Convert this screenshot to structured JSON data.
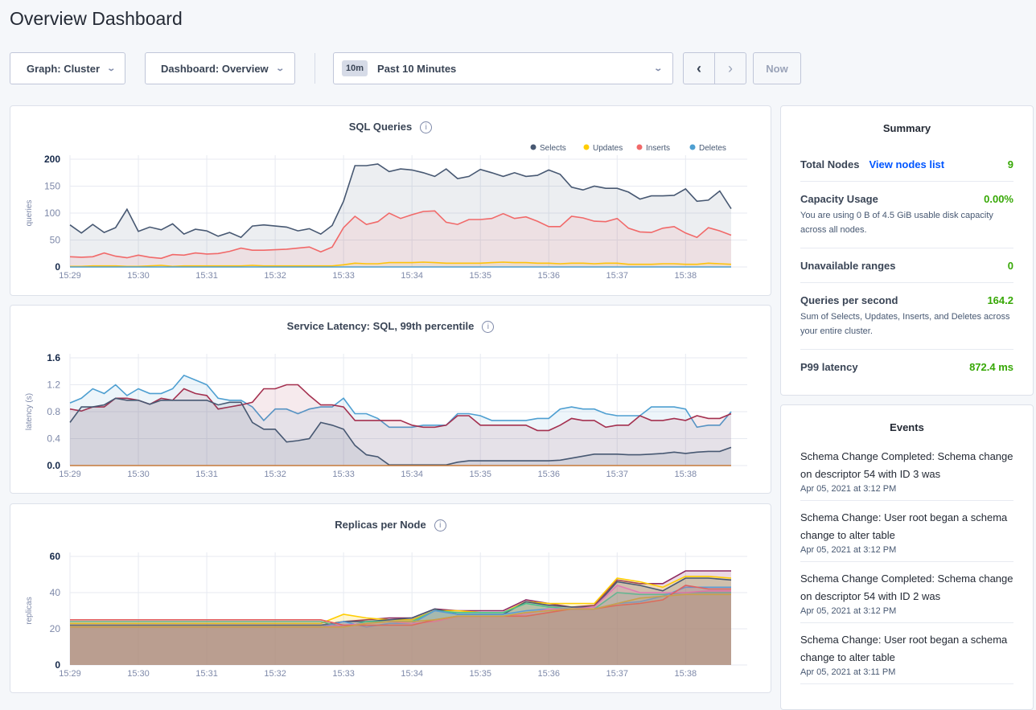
{
  "page_title": "Overview Dashboard",
  "controls": {
    "graph": "Graph: Cluster",
    "dashboard": "Dashboard: Overview",
    "time_badge": "10m",
    "time_range": "Past 10 Minutes",
    "prev": "‹",
    "next": "›",
    "now": "Now"
  },
  "summary": {
    "title": "Summary",
    "total_nodes": {
      "label": "Total Nodes",
      "link": "View nodes list",
      "value": "9"
    },
    "capacity": {
      "label": "Capacity Usage",
      "value": "0.00%",
      "desc": "You are using 0 B of 4.5 GiB usable disk capacity across all nodes."
    },
    "unavailable": {
      "label": "Unavailable ranges",
      "value": "0"
    },
    "qps": {
      "label": "Queries per second",
      "value": "164.2",
      "desc": "Sum of Selects, Updates, Inserts, and Deletes across your entire cluster."
    },
    "p99": {
      "label": "P99 latency",
      "value": "872.4 ms"
    }
  },
  "events": {
    "title": "Events",
    "items": [
      {
        "text": "Schema Change Completed: Schema change on descriptor 54 with ID 3 was",
        "date": "Apr 05, 2021 at 3:12 PM"
      },
      {
        "text": "Schema Change: User root began a schema change to alter table",
        "date": "Apr 05, 2021 at 3:12 PM"
      },
      {
        "text": "Schema Change Completed: Schema change on descriptor 54 with ID 2 was",
        "date": "Apr 05, 2021 at 3:12 PM"
      },
      {
        "text": "Schema Change: User root began a schema change to alter table",
        "date": "Apr 05, 2021 at 3:11 PM"
      }
    ]
  },
  "chart_data": [
    {
      "type": "area",
      "title": "SQL Queries",
      "info": "i",
      "ylabel": "queries",
      "ylim": [
        0,
        200
      ],
      "yticks": [
        "0",
        "50",
        "100",
        "150",
        "200"
      ],
      "x_range": [
        "15:29:00",
        "15:38:40"
      ],
      "xticks": [
        "15:29",
        "15:30",
        "15:31",
        "15:32",
        "15:33",
        "15:34",
        "15:35",
        "15:36",
        "15:37",
        "15:38"
      ],
      "grid": true,
      "legend": "top-right",
      "series": [
        {
          "name": "Selects",
          "color": "#475872",
          "values": [
            78,
            63,
            79,
            64,
            73,
            107,
            66,
            74,
            69,
            80,
            61,
            70,
            67,
            57,
            64,
            55,
            76,
            78,
            76,
            74,
            67,
            71,
            61,
            77,
            122,
            188,
            188,
            191,
            177,
            182,
            180,
            175,
            168,
            182,
            164,
            168,
            181,
            175,
            168,
            175,
            168,
            170,
            180,
            172,
            148,
            143,
            150,
            146,
            146,
            139,
            126,
            132,
            132,
            133,
            145,
            122,
            124,
            141,
            108
          ]
        },
        {
          "name": "Updates",
          "color": "#ffcd02",
          "values": [
            1,
            1,
            2,
            2,
            2,
            1,
            1,
            2,
            3,
            1,
            2,
            2,
            2,
            2,
            2,
            2,
            3,
            2,
            2,
            2,
            2,
            2,
            2,
            2,
            4,
            7,
            6,
            6,
            8,
            8,
            8,
            9,
            8,
            7,
            7,
            7,
            7,
            8,
            9,
            8,
            8,
            7,
            7,
            6,
            7,
            7,
            6,
            7,
            7,
            5,
            5,
            5,
            6,
            6,
            5,
            5,
            7,
            6,
            5
          ]
        },
        {
          "name": "Inserts",
          "color": "#f16969",
          "values": [
            19,
            18,
            19,
            26,
            20,
            17,
            22,
            18,
            16,
            23,
            22,
            26,
            24,
            25,
            29,
            35,
            31,
            31,
            32,
            33,
            35,
            37,
            28,
            37,
            73,
            94,
            79,
            84,
            100,
            90,
            97,
            103,
            104,
            83,
            79,
            88,
            88,
            90,
            99,
            90,
            93,
            85,
            75,
            75,
            94,
            91,
            85,
            84,
            90,
            72,
            65,
            64,
            72,
            75,
            63,
            55,
            73,
            67,
            59
          ]
        },
        {
          "name": "Deletes",
          "color": "#4e9fd1",
          "values": [
            0,
            0,
            0,
            0,
            0,
            0,
            0,
            0,
            0,
            0,
            0,
            0,
            0,
            0,
            0,
            0,
            0,
            0,
            0,
            0,
            0,
            0,
            0,
            0,
            0,
            0,
            0,
            0,
            0,
            0,
            0,
            0,
            0,
            0,
            0,
            0,
            0,
            0,
            0,
            0,
            0,
            0,
            0,
            0,
            0,
            0,
            0,
            0,
            0,
            0,
            0,
            0,
            0,
            0,
            0,
            0,
            0,
            0,
            0
          ]
        }
      ]
    },
    {
      "type": "area",
      "title": "Service Latency: SQL, 99th percentile",
      "info": "i",
      "ylabel": "latency (s)",
      "ylim": [
        0,
        1.6
      ],
      "yticks": [
        "0.0",
        "0.4",
        "0.8",
        "1.2",
        "1.6"
      ],
      "x_range": [
        "15:29:00",
        "15:38:40"
      ],
      "xticks": [
        "15:29",
        "15:30",
        "15:31",
        "15:32",
        "15:33",
        "15:34",
        "15:35",
        "15:36",
        "15:37",
        "15:38"
      ],
      "grid": true,
      "series": [
        {
          "color": "#4e9fd1",
          "values": [
            0.93,
            1.0,
            1.14,
            1.07,
            1.2,
            1.04,
            1.14,
            1.07,
            1.07,
            1.14,
            1.34,
            1.27,
            1.2,
            1.0,
            0.97,
            0.97,
            0.87,
            0.67,
            0.84,
            0.84,
            0.77,
            0.84,
            0.87,
            0.87,
            1.0,
            0.77,
            0.77,
            0.7,
            0.57,
            0.57,
            0.57,
            0.6,
            0.6,
            0.6,
            0.77,
            0.77,
            0.74,
            0.67,
            0.67,
            0.67,
            0.67,
            0.7,
            0.7,
            0.84,
            0.87,
            0.84,
            0.84,
            0.77,
            0.74,
            0.74,
            0.74,
            0.87,
            0.87,
            0.87,
            0.84,
            0.57,
            0.6,
            0.6,
            0.8
          ]
        },
        {
          "color": "#a4304f",
          "values": [
            0.84,
            0.81,
            0.87,
            0.87,
            1.0,
            1.0,
            0.97,
            0.91,
            1.0,
            0.97,
            1.14,
            1.07,
            1.04,
            0.84,
            0.87,
            0.9,
            0.94,
            1.14,
            1.14,
            1.2,
            1.2,
            1.04,
            0.9,
            0.9,
            0.87,
            0.67,
            0.67,
            0.67,
            0.67,
            0.67,
            0.6,
            0.57,
            0.57,
            0.6,
            0.74,
            0.74,
            0.6,
            0.6,
            0.6,
            0.6,
            0.6,
            0.52,
            0.52,
            0.6,
            0.7,
            0.67,
            0.67,
            0.57,
            0.6,
            0.6,
            0.74,
            0.67,
            0.67,
            0.7,
            0.67,
            0.74,
            0.7,
            0.7,
            0.77
          ]
        },
        {
          "color": "#475872",
          "values": [
            0.64,
            0.87,
            0.87,
            0.9,
            1.0,
            0.97,
            0.97,
            0.91,
            0.97,
            0.97,
            0.97,
            0.97,
            0.97,
            0.9,
            0.94,
            0.94,
            0.64,
            0.54,
            0.54,
            0.35,
            0.37,
            0.4,
            0.64,
            0.6,
            0.54,
            0.3,
            0.16,
            0.13,
            0.01,
            0.01,
            0.01,
            0.01,
            0.01,
            0.01,
            0.05,
            0.07,
            0.07,
            0.07,
            0.07,
            0.07,
            0.07,
            0.07,
            0.07,
            0.08,
            0.11,
            0.14,
            0.17,
            0.17,
            0.17,
            0.16,
            0.16,
            0.17,
            0.18,
            0.2,
            0.18,
            0.2,
            0.21,
            0.21,
            0.27
          ]
        },
        {
          "color": "#c67a3a",
          "values": [
            0,
            0,
            0,
            0,
            0,
            0,
            0,
            0,
            0,
            0,
            0,
            0,
            0,
            0,
            0,
            0,
            0,
            0,
            0,
            0,
            0,
            0,
            0,
            0,
            0,
            0,
            0,
            0,
            0,
            0,
            0,
            0,
            0,
            0,
            0,
            0,
            0,
            0,
            0,
            0,
            0,
            0,
            0,
            0,
            0,
            0,
            0,
            0,
            0,
            0,
            0,
            0,
            0,
            0,
            0,
            0,
            0,
            0,
            0
          ]
        }
      ]
    },
    {
      "type": "area",
      "title": "Replicas per Node",
      "info": "i",
      "ylabel": "replicas",
      "ylim": [
        0,
        60
      ],
      "yticks": [
        "0",
        "20",
        "40",
        "60"
      ],
      "x_range": [
        "15:29:00",
        "15:38:40"
      ],
      "xticks": [
        "15:29",
        "15:30",
        "15:31",
        "15:32",
        "15:33",
        "15:34",
        "15:35",
        "15:36",
        "15:37",
        "15:38"
      ],
      "grid": true,
      "series": [
        {
          "color": "#8e2b62",
          "values": [
            22,
            22,
            22,
            22,
            22,
            22,
            22,
            22,
            22,
            22,
            22,
            22,
            24,
            25,
            26,
            26,
            31,
            30,
            30,
            30,
            36,
            34,
            32,
            33,
            47,
            45,
            45,
            52,
            52,
            52
          ]
        },
        {
          "color": "#ffcd02",
          "values": [
            23,
            23,
            23,
            23,
            23,
            23,
            23,
            23,
            23,
            23,
            23,
            23,
            28,
            26,
            25,
            25,
            30,
            30,
            29,
            29,
            35,
            34,
            34,
            34,
            48,
            46,
            43,
            49,
            49,
            48
          ]
        },
        {
          "color": "#475872",
          "values": [
            22,
            22,
            22,
            22,
            22,
            22,
            22,
            22,
            22,
            22,
            22,
            22,
            24,
            24,
            25,
            26,
            31,
            28,
            28,
            28,
            35,
            33,
            32,
            32,
            46,
            44,
            41,
            48,
            48,
            47
          ]
        },
        {
          "color": "#4cc38a",
          "values": [
            24,
            24,
            24,
            24,
            24,
            24,
            24,
            24,
            24,
            24,
            24,
            24,
            21,
            24,
            24,
            24,
            30,
            29,
            29,
            29,
            34,
            32,
            31,
            31,
            40,
            39,
            39,
            40,
            40,
            40
          ]
        },
        {
          "color": "#5b9bd5",
          "values": [
            21,
            21,
            21,
            21,
            21,
            21,
            21,
            21,
            21,
            21,
            21,
            21,
            24,
            21,
            23,
            23,
            30,
            28,
            28,
            28,
            30,
            31,
            31,
            31,
            34,
            35,
            38,
            43,
            43,
            43
          ]
        },
        {
          "color": "#e07bb5",
          "values": [
            21,
            21,
            21,
            21,
            21,
            21,
            21,
            21,
            21,
            21,
            21,
            21,
            22,
            23,
            24,
            23,
            24,
            27,
            27,
            27,
            28,
            31,
            31,
            32,
            44,
            40,
            40,
            40,
            41,
            41
          ]
        },
        {
          "color": "#e06060",
          "values": [
            25,
            25,
            25,
            25,
            25,
            25,
            25,
            25,
            25,
            25,
            25,
            25,
            22,
            22,
            22,
            22,
            25,
            27,
            27,
            27,
            27,
            29,
            31,
            31,
            33,
            34,
            36,
            44,
            42,
            42
          ]
        },
        {
          "color": "#c9a04a",
          "values": [
            21,
            21,
            21,
            21,
            21,
            21,
            21,
            21,
            21,
            21,
            21,
            21,
            21,
            23,
            24,
            24,
            25,
            27,
            27,
            27,
            29,
            30,
            31,
            31,
            34,
            37,
            38,
            39,
            39,
            39
          ]
        }
      ]
    }
  ]
}
